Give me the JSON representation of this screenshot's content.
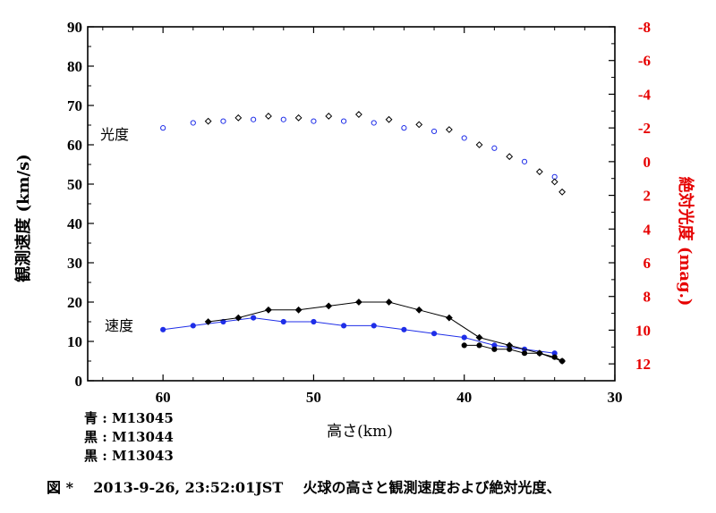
{
  "chart_data": {
    "type": "scatter",
    "xlabel": "高さ(km)",
    "ylabel": "観測速度 (km/s)",
    "y2label": "絶対光度 (mag.)",
    "xlim": [
      65,
      30
    ],
    "ylim": [
      0,
      90
    ],
    "y2lim": [
      13,
      -8
    ],
    "x_ticks": [
      "60",
      "50",
      "40",
      "30"
    ],
    "y_ticks": [
      "0",
      "10",
      "20",
      "30",
      "40",
      "50",
      "60",
      "70",
      "80",
      "90"
    ],
    "y2_ticks": [
      "-8",
      "-6",
      "-4",
      "-2",
      "0",
      "2",
      "4",
      "6",
      "8",
      "10",
      "12"
    ],
    "annotations": {
      "brightness_group": "光度",
      "velocity_group": "速度"
    },
    "colors": {
      "blue": "#1f2ee8",
      "black": "#000000",
      "right_axis": "#e60000"
    },
    "series": [
      {
        "name": "M13045",
        "kind": "brightness",
        "color": "blue",
        "marker": "open-circle",
        "x": [
          60.0,
          58.0,
          56.0,
          54.0,
          52.0,
          50.0,
          48.0,
          46.0,
          44.0,
          42.0,
          40.0,
          38.0,
          36.0,
          34.0
        ],
        "y": [
          -2.0,
          -2.3,
          -2.4,
          -2.5,
          -2.5,
          -2.4,
          -2.4,
          -2.3,
          -2.0,
          -1.8,
          -1.4,
          -0.8,
          0.0,
          0.9
        ]
      },
      {
        "name": "M13044",
        "kind": "brightness",
        "color": "black",
        "marker": "open-diamond",
        "x": [
          57.0,
          55.0,
          53.0,
          51.0,
          49.0,
          47.0,
          45.0,
          43.0,
          41.0,
          39.0,
          37.0,
          35.0,
          34.0,
          33.5
        ],
        "y": [
          -2.4,
          -2.6,
          -2.7,
          -2.6,
          -2.7,
          -2.8,
          -2.5,
          -2.2,
          -1.9,
          -1.0,
          -0.3,
          0.6,
          1.2,
          1.8
        ]
      },
      {
        "name": "M13045",
        "kind": "velocity",
        "color": "blue",
        "marker": "filled-circle",
        "x": [
          60.0,
          58.0,
          56.0,
          54.0,
          52.0,
          50.0,
          48.0,
          46.0,
          44.0,
          42.0,
          40.0,
          38.0,
          36.0,
          34.0
        ],
        "y": [
          13,
          14,
          15,
          16,
          15,
          15,
          14,
          14,
          13,
          12,
          11,
          9,
          8,
          7
        ]
      },
      {
        "name": "M13044",
        "kind": "velocity",
        "color": "black",
        "marker": "filled-diamond",
        "x": [
          57.0,
          55.0,
          53.0,
          51.0,
          49.0,
          47.0,
          45.0,
          43.0,
          41.0,
          39.0,
          37.0,
          35.0,
          33.5
        ],
        "y": [
          15,
          16,
          18,
          18,
          19,
          20,
          20,
          18,
          16,
          11,
          9,
          7,
          5
        ]
      },
      {
        "name": "M13043",
        "kind": "velocity",
        "color": "black",
        "marker": "filled-circle",
        "x": [
          40.0,
          39.0,
          38.0,
          37.0,
          36.0,
          35.0,
          34.0,
          33.5
        ],
        "y": [
          9,
          9,
          8,
          8,
          7,
          7,
          6,
          5
        ]
      }
    ]
  },
  "legend": [
    {
      "label": "青",
      "value": "M13045"
    },
    {
      "label": "黒",
      "value": "M13044"
    },
    {
      "label": "黒",
      "value": "M13043"
    }
  ],
  "caption": {
    "fig": "図 *",
    "datetime": "2013-9-26, 23:52:01JST",
    "text": "火球の高さと観測速度および絶対光度、"
  }
}
